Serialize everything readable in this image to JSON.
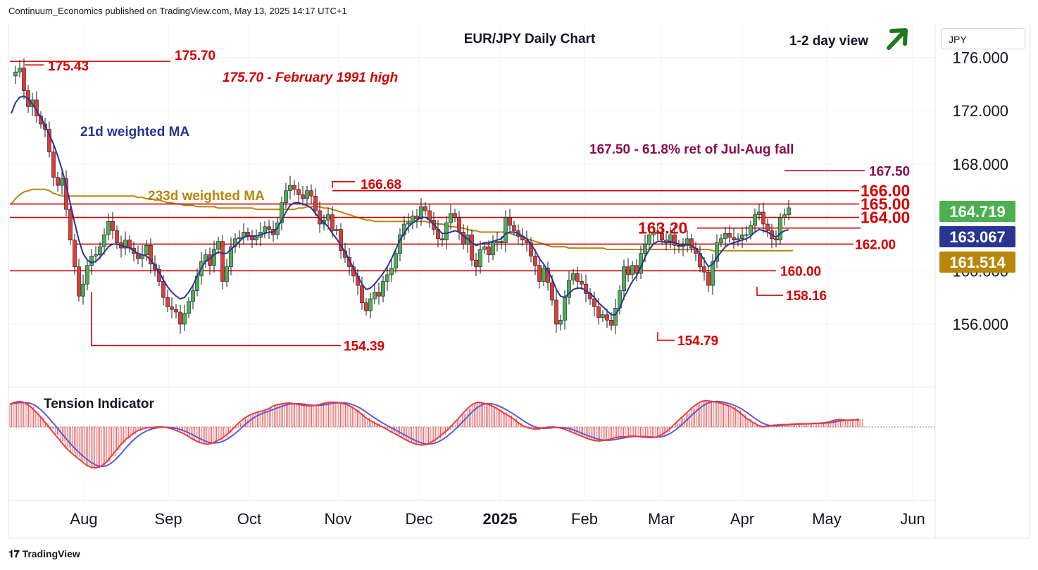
{
  "header": "Continuum_Economics published on TradingView.com, May 13, 2025 14:17 UTC+1",
  "footer_brand": "TradingView",
  "currency_label": "JPY",
  "chart_data": {
    "type": "candlestick",
    "title": "EUR/JPY Daily Chart",
    "view_label": "1-2 day view",
    "view_direction": "up-arrow",
    "y_ticks": [
      {
        "value": 176,
        "label": "176.000"
      },
      {
        "value": 172,
        "label": "172.000"
      },
      {
        "value": 168,
        "label": "168.000"
      },
      {
        "value": 160,
        "label": "160.000"
      },
      {
        "value": 156,
        "label": "156.000"
      }
    ],
    "ylim": [
      151.3,
      178.5
    ],
    "x_ticks": [
      "Aug",
      "Sep",
      "Oct",
      "Nov",
      "Dec",
      "2025",
      "Feb",
      "Mar",
      "Apr",
      "May",
      "Jun"
    ],
    "price_badges": [
      {
        "label": "164.719",
        "value": 164.719,
        "color": "#4caf50"
      },
      {
        "label": "163.067",
        "value": 163.067,
        "color": "#283593"
      },
      {
        "label": "161.514",
        "value": 161.514,
        "color": "#b8860b"
      }
    ],
    "levels": [
      {
        "value": 175.7,
        "label": "175.70",
        "from": "Jul",
        "size": "small"
      },
      {
        "value": 166.0,
        "label": "166.00",
        "size": "large"
      },
      {
        "value": 165.0,
        "label": "165.00",
        "size": "large"
      },
      {
        "value": 164.0,
        "label": "164.00",
        "size": "large"
      },
      {
        "value": 163.2,
        "label": "163.20",
        "size": "large"
      },
      {
        "value": 162.0,
        "label": "162.00",
        "size": "small"
      },
      {
        "value": 160.0,
        "label": "160.00",
        "size": "small"
      },
      {
        "value": 167.5,
        "label": "167.50",
        "size": "small",
        "color": "#880e4f"
      }
    ],
    "point_labels": [
      {
        "label": "175.43",
        "value": 175.43
      },
      {
        "label": "166.68",
        "value": 166.68
      },
      {
        "label": "154.39",
        "value": 154.39
      },
      {
        "label": "154.79",
        "value": 154.79
      },
      {
        "label": "158.16",
        "value": 158.16
      }
    ],
    "annotations": [
      {
        "text": "175.70 - February 1991 high",
        "color": "#d50000"
      },
      {
        "text": "167.50 - 61.8% ret of Jul-Aug fall",
        "color": "#880e4f"
      },
      {
        "text": "21d weighted MA",
        "color": "#283593"
      },
      {
        "text": "233d weighted MA",
        "color": "#b8860b"
      }
    ],
    "closes": [
      174.6,
      174.9,
      175.2,
      173.5,
      172.3,
      172.8,
      171.6,
      171.0,
      170.6,
      168.9,
      167.0,
      166.4,
      166.9,
      164.6,
      162.3,
      160.3,
      158.1,
      159.0,
      160.4,
      161.1,
      161.2,
      161.8,
      162.7,
      163.7,
      163.0,
      162.1,
      161.7,
      162.3,
      161.7,
      161.3,
      160.9,
      161.2,
      161.9,
      160.5,
      160.1,
      159.2,
      158.0,
      157.3,
      157.1,
      156.9,
      156.0,
      156.8,
      157.7,
      158.5,
      159.6,
      160.7,
      161.2,
      160.4,
      161.6,
      162.2,
      159.2,
      160.3,
      161.8,
      162.4,
      162.5,
      162.9,
      162.6,
      162.3,
      162.5,
      162.9,
      163.3,
      163.1,
      162.7,
      163.6,
      165.1,
      166.0,
      166.4,
      166.1,
      165.7,
      165.4,
      166.0,
      165.6,
      164.5,
      163.5,
      163.8,
      164.2,
      163.0,
      163.1,
      161.5,
      161.0,
      160.3,
      159.6,
      158.9,
      157.6,
      157.0,
      157.9,
      158.4,
      158.1,
      159.2,
      159.7,
      160.2,
      161.3,
      162.7,
      163.5,
      163.6,
      164.1,
      163.9,
      164.8,
      164.5,
      163.8,
      163.1,
      162.4,
      162.3,
      163.6,
      164.3,
      164.0,
      162.9,
      162.0,
      162.7,
      160.8,
      160.3,
      161.6,
      161.8,
      161.2,
      162.1,
      162.2,
      162.1,
      164.0,
      163.4,
      163.0,
      162.6,
      162.3,
      162.1,
      161.1,
      160.4,
      159.2,
      160.2,
      159.1,
      157.8,
      156.0,
      156.3,
      158.0,
      159.3,
      159.8,
      159.2,
      159.0,
      158.3,
      157.9,
      157.3,
      156.5,
      156.7,
      156.3,
      155.9,
      157.2,
      158.5,
      160.3,
      159.7,
      160.4,
      159.8,
      161.3,
      162.0,
      162.7,
      162.9,
      162.8,
      162.3,
      162.1,
      162.7,
      161.9,
      161.8,
      161.9,
      162.4,
      161.7,
      161.3,
      160.3,
      159.9,
      158.9,
      160.7,
      162.1,
      162.4,
      162.8,
      162.5,
      162.3,
      162.4,
      162.7,
      162.7,
      163.4,
      164.2,
      164.4,
      163.5,
      163.0,
      162.4,
      162.3,
      164.0,
      164.2,
      164.72
    ],
    "ma21": [
      171.8,
      172.6,
      173.0,
      173.1,
      172.9,
      172.5,
      172.0,
      171.5,
      170.9,
      170.2,
      169.5,
      168.6,
      167.6,
      166.4,
      165.0,
      163.6,
      162.3,
      161.3,
      160.8,
      160.6,
      160.7,
      161.0,
      161.4,
      161.8,
      162.0,
      162.0,
      161.9,
      161.8,
      161.7,
      161.5,
      161.3,
      161.2,
      161.1,
      160.8,
      160.4,
      159.9,
      159.3,
      158.8,
      158.4,
      158.1,
      157.9,
      158.0,
      158.4,
      158.9,
      159.6,
      160.2,
      160.7,
      160.9,
      161.2,
      161.4,
      161.3,
      161.3,
      161.6,
      161.9,
      162.2,
      162.5,
      162.6,
      162.6,
      162.6,
      162.7,
      162.8,
      162.9,
      162.9,
      163.2,
      163.8,
      164.4,
      164.9,
      165.1,
      165.1,
      165.0,
      164.9,
      164.7,
      164.3,
      163.9,
      163.6,
      163.3,
      162.8,
      162.4,
      161.9,
      161.4,
      160.8,
      160.2,
      159.6,
      159.0,
      158.6,
      158.7,
      159.0,
      159.4,
      159.8,
      160.3,
      160.9,
      161.6,
      162.3,
      162.8,
      163.3,
      163.6,
      163.8,
      164.0,
      164.0,
      163.8,
      163.5,
      163.1,
      162.8,
      162.8,
      162.9,
      163.0,
      162.9,
      162.6,
      162.4,
      162.1,
      161.9,
      162.0,
      162.1,
      162.1,
      162.2,
      162.3,
      162.4,
      162.8,
      162.9,
      162.9,
      162.8,
      162.6,
      162.4,
      162.0,
      161.5,
      160.9,
      160.5,
      160.0,
      159.4,
      158.6,
      158.1,
      158.0,
      158.3,
      158.6,
      158.7,
      158.7,
      158.5,
      158.3,
      158.0,
      157.6,
      157.3,
      157.0,
      156.7,
      156.7,
      157.2,
      158.0,
      158.6,
      159.2,
      159.6,
      160.3,
      161.0,
      161.6,
      162.0,
      162.2,
      162.2,
      162.1,
      162.2,
      162.1,
      162.0,
      161.9,
      162.0,
      161.9,
      161.7,
      161.3,
      160.8,
      160.3,
      160.5,
      161.0,
      161.4,
      161.8,
      162.0,
      162.1,
      162.2,
      162.3,
      162.4,
      162.6,
      162.9,
      163.1,
      163.0,
      162.9,
      162.7,
      162.5,
      162.8,
      163.0,
      163.07
    ],
    "ma233": [
      165.0,
      165.4,
      165.7,
      165.9,
      166.0,
      166.1,
      166.1,
      166.1,
      166.1,
      166.0,
      165.8,
      165.7,
      165.6,
      165.6,
      165.6,
      165.6,
      165.6,
      165.6,
      165.6,
      165.6,
      165.6,
      165.6,
      165.6,
      165.6,
      165.6,
      165.6,
      165.6,
      165.6,
      165.6,
      165.6,
      165.5,
      165.5,
      165.4,
      165.4,
      165.3,
      165.3,
      165.2,
      165.1,
      165.1,
      165.0,
      165.0,
      164.9,
      164.9,
      164.9,
      164.8,
      164.8,
      164.8,
      164.8,
      164.8,
      164.7,
      164.7,
      164.7,
      164.7,
      164.7,
      164.7,
      164.7,
      164.7,
      164.7,
      164.6,
      164.6,
      164.6,
      164.6,
      164.6,
      164.6,
      164.6,
      164.6,
      164.6,
      164.6,
      164.7,
      164.7,
      164.8,
      164.8,
      164.8,
      164.8,
      164.7,
      164.7,
      164.6,
      164.5,
      164.4,
      164.3,
      164.2,
      164.1,
      164.0,
      163.9,
      163.8,
      163.8,
      163.7,
      163.7,
      163.7,
      163.7,
      163.7,
      163.7,
      163.7,
      163.7,
      163.7,
      163.7,
      163.7,
      163.7,
      163.7,
      163.6,
      163.6,
      163.5,
      163.5,
      163.4,
      163.3,
      163.3,
      163.2,
      163.2,
      163.1,
      163.0,
      163.0,
      162.9,
      162.9,
      162.9,
      162.9,
      162.9,
      162.9,
      162.9,
      162.8,
      162.7,
      162.6,
      162.5,
      162.4,
      162.3,
      162.2,
      162.1,
      162.0,
      161.9,
      161.8,
      161.8,
      161.8,
      161.8,
      161.7,
      161.7,
      161.7,
      161.7,
      161.7,
      161.7,
      161.7,
      161.7,
      161.7,
      161.6,
      161.6,
      161.6,
      161.6,
      161.6,
      161.6,
      161.6,
      161.6,
      161.6,
      161.6,
      161.6,
      161.6,
      161.6,
      161.6,
      161.6,
      161.6,
      161.6,
      161.6,
      161.6,
      161.6,
      161.6,
      161.6,
      161.6,
      161.6,
      161.6,
      161.5,
      161.5,
      161.5,
      161.5,
      161.5,
      161.5,
      161.5,
      161.5,
      161.5,
      161.5,
      161.5,
      161.5,
      161.5,
      161.5,
      161.5,
      161.5,
      161.5,
      161.5,
      161.5,
      161.514
    ],
    "sub_panel": {
      "title": "Tension Indicator",
      "values": [
        0.55,
        0.6,
        0.62,
        0.58,
        0.5,
        0.38,
        0.25,
        0.1,
        -0.05,
        -0.2,
        -0.35,
        -0.5,
        -0.62,
        -0.72,
        -0.82,
        -0.92,
        -0.98,
        -0.99,
        -0.95,
        -0.85,
        -0.7,
        -0.55,
        -0.4,
        -0.28,
        -0.18,
        -0.1,
        -0.05,
        -0.02,
        -0.01,
        0.0,
        0.0,
        -0.02,
        -0.05,
        -0.1,
        -0.15,
        -0.22,
        -0.3,
        -0.36,
        -0.4,
        -0.42,
        -0.38,
        -0.32,
        -0.25,
        -0.15,
        -0.03,
        0.1,
        0.2,
        0.28,
        0.33,
        0.37,
        0.4,
        0.45,
        0.52,
        0.55,
        0.57,
        0.58,
        0.56,
        0.54,
        0.52,
        0.51,
        0.52,
        0.55,
        0.58,
        0.6,
        0.6,
        0.58,
        0.55,
        0.5,
        0.42,
        0.33,
        0.22,
        0.15,
        0.08,
        0.02,
        -0.05,
        -0.12,
        -0.18,
        -0.25,
        -0.32,
        -0.38,
        -0.42,
        -0.44,
        -0.42,
        -0.36,
        -0.28,
        -0.18,
        -0.08,
        0.05,
        0.18,
        0.32,
        0.45,
        0.55,
        0.6,
        0.58,
        0.55,
        0.5,
        0.43,
        0.35,
        0.28,
        0.2,
        0.1,
        0.02,
        -0.02,
        -0.05,
        -0.05,
        -0.02,
        0.0,
        0.0,
        -0.02,
        -0.05,
        -0.1,
        -0.15,
        -0.2,
        -0.25,
        -0.3,
        -0.33,
        -0.34,
        -0.32,
        -0.3,
        -0.26,
        -0.24,
        -0.24,
        -0.22,
        -0.22,
        -0.24,
        -0.25,
        -0.26,
        -0.25,
        -0.2,
        -0.12,
        -0.02,
        0.1,
        0.22,
        0.33,
        0.45,
        0.55,
        0.62,
        0.64,
        0.62,
        0.6,
        0.57,
        0.53,
        0.48,
        0.4,
        0.3,
        0.2,
        0.12,
        0.05,
        0.0,
        0.02,
        0.04,
        0.05,
        0.06,
        0.06,
        0.07,
        0.08,
        0.08,
        0.08,
        0.09,
        0.09,
        0.1,
        0.12,
        0.16,
        0.18,
        0.17,
        0.16,
        0.17,
        0.19
      ]
    },
    "colors": {
      "up": "#4caf50",
      "down": "#e53935",
      "level_line": "#d50000",
      "ma21": "#283593",
      "ma233": "#b8860b",
      "tension_fast": "#ef3b3b",
      "tension_slow": "#5b5bd6"
    }
  }
}
